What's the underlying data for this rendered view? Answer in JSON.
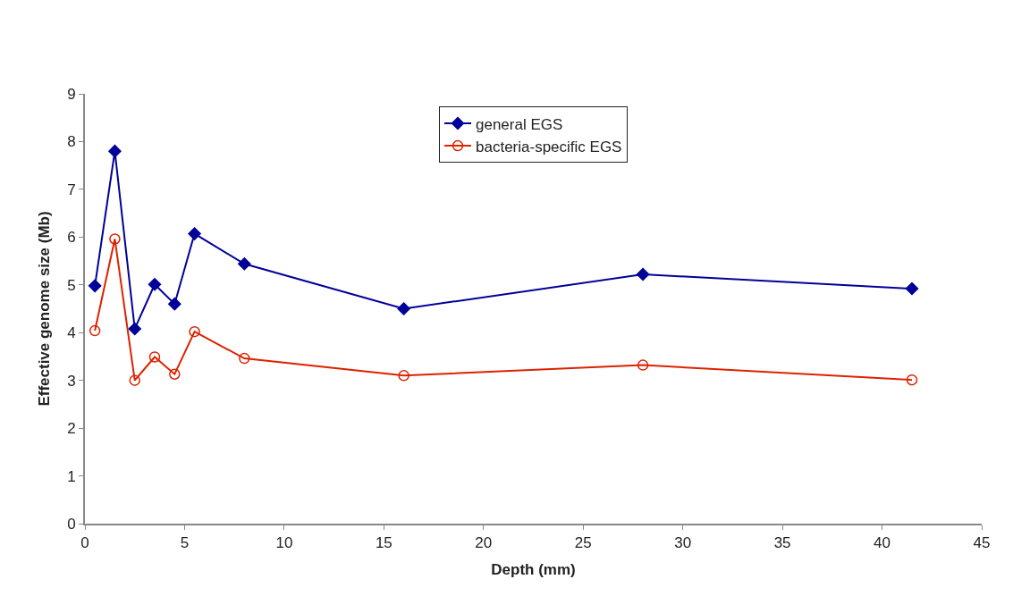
{
  "chart_data": {
    "type": "line",
    "xlabel": "Depth (mm)",
    "ylabel": "Effective genome size (Mb)",
    "x": [
      0.5,
      1.5,
      2.5,
      3.5,
      4.5,
      5.5,
      8,
      16,
      28,
      41.5
    ],
    "series": [
      {
        "name": "general EGS",
        "color": "#000099",
        "marker": "diamond",
        "values": [
          4.98,
          7.8,
          4.08,
          5.01,
          4.6,
          6.07,
          5.44,
          4.5,
          5.22,
          4.92
        ]
      },
      {
        "name": "bacteria-specific EGS",
        "color": "#dd2200",
        "marker": "circle-open",
        "values": [
          4.04,
          5.96,
          3.0,
          3.49,
          3.13,
          4.02,
          3.46,
          3.1,
          3.32,
          3.01
        ]
      }
    ],
    "xlim": [
      0,
      45
    ],
    "xticks": [
      0,
      5,
      10,
      15,
      20,
      25,
      30,
      35,
      40,
      45
    ],
    "ylim": [
      0,
      9
    ],
    "yticks": [
      0,
      1,
      2,
      3,
      4,
      5,
      6,
      7,
      8,
      9
    ],
    "legend": "top",
    "line_style": "solid"
  }
}
